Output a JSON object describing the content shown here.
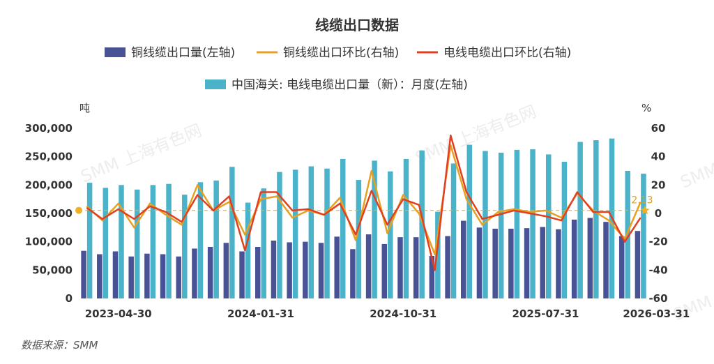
{
  "chart_data": {
    "type": "bar",
    "title": "线缆出口数据",
    "source": "数据来源：SMM",
    "watermark": "SMM 上海有色网",
    "left_axis": {
      "unit": "吨",
      "min": 0,
      "max": 300000,
      "ticks": [
        "0",
        "50,000",
        "100,000",
        "150,000",
        "200,000",
        "250,000",
        "300,000"
      ],
      "tick_values": [
        0,
        50000,
        100000,
        150000,
        200000,
        250000,
        300000
      ]
    },
    "right_axis": {
      "unit": "%",
      "min": -60,
      "max": 60,
      "ticks": [
        "-60",
        "-40",
        "-20",
        "0",
        "20",
        "40",
        "60"
      ],
      "tick_values": [
        -60,
        -40,
        -20,
        0,
        20,
        40,
        60
      ]
    },
    "x_tick_labels": [
      "2023-04-30",
      "2024-01-31",
      "2024-10-31",
      "2025-07-31",
      "2026-03-31"
    ],
    "x_tick_index": [
      2,
      11,
      20,
      29,
      36
    ],
    "series": [
      {
        "name": "铜线缆出口量(左轴)",
        "kind": "bar",
        "axis": "left",
        "color": "#4a5296",
        "values": [
          84000,
          78000,
          83000,
          74000,
          79000,
          78000,
          74000,
          88000,
          91000,
          98000,
          83000,
          91000,
          102000,
          99000,
          100000,
          98000,
          109000,
          87000,
          113000,
          96000,
          108000,
          108000,
          75000,
          110000,
          137000,
          125000,
          123000,
          123000,
          124000,
          126000,
          122000,
          139000,
          142000,
          135000,
          110000,
          119000
        ]
      },
      {
        "name": "中国海关: 电线电缆出口量（新）：月度(左轴)",
        "kind": "bar",
        "axis": "left",
        "color": "#4bb3c9",
        "values": [
          204000,
          195000,
          200000,
          192000,
          200000,
          202000,
          183000,
          205000,
          208000,
          232000,
          169000,
          194000,
          223000,
          227000,
          233000,
          229000,
          246000,
          209000,
          243000,
          224000,
          246000,
          261000,
          153000,
          238000,
          271000,
          260000,
          257000,
          262000,
          263000,
          254000,
          241000,
          276000,
          279000,
          282000,
          225000,
          220000
        ]
      },
      {
        "name": "铜线缆出口环比(右轴)",
        "kind": "line",
        "axis": "right",
        "color": "#e8a020",
        "values": [
          5,
          -5,
          7,
          -10,
          7,
          -1,
          -8,
          20,
          2,
          8,
          -15,
          10,
          12,
          -3,
          2,
          -1,
          11,
          -19,
          30,
          -14,
          13,
          0,
          -29,
          48,
          10,
          -8,
          1,
          3,
          1,
          2,
          -3,
          14,
          2,
          -5,
          -18,
          8
        ]
      },
      {
        "name": "电线电缆出口环比(右轴)",
        "kind": "line",
        "axis": "right",
        "color": "#e04020",
        "values": [
          4,
          -4,
          3,
          -4,
          5,
          1,
          -6,
          13,
          2,
          12,
          -26,
          15,
          15,
          2,
          3,
          -1,
          7,
          -15,
          16,
          -8,
          10,
          6,
          -40,
          55,
          15,
          -4,
          -1,
          2,
          0,
          -2,
          -5,
          15,
          1,
          1,
          -20,
          -3
        ]
      }
    ],
    "reference_line": {
      "axis": "right",
      "value": 2.13,
      "label": "2.13",
      "color": "#f0b020"
    }
  }
}
